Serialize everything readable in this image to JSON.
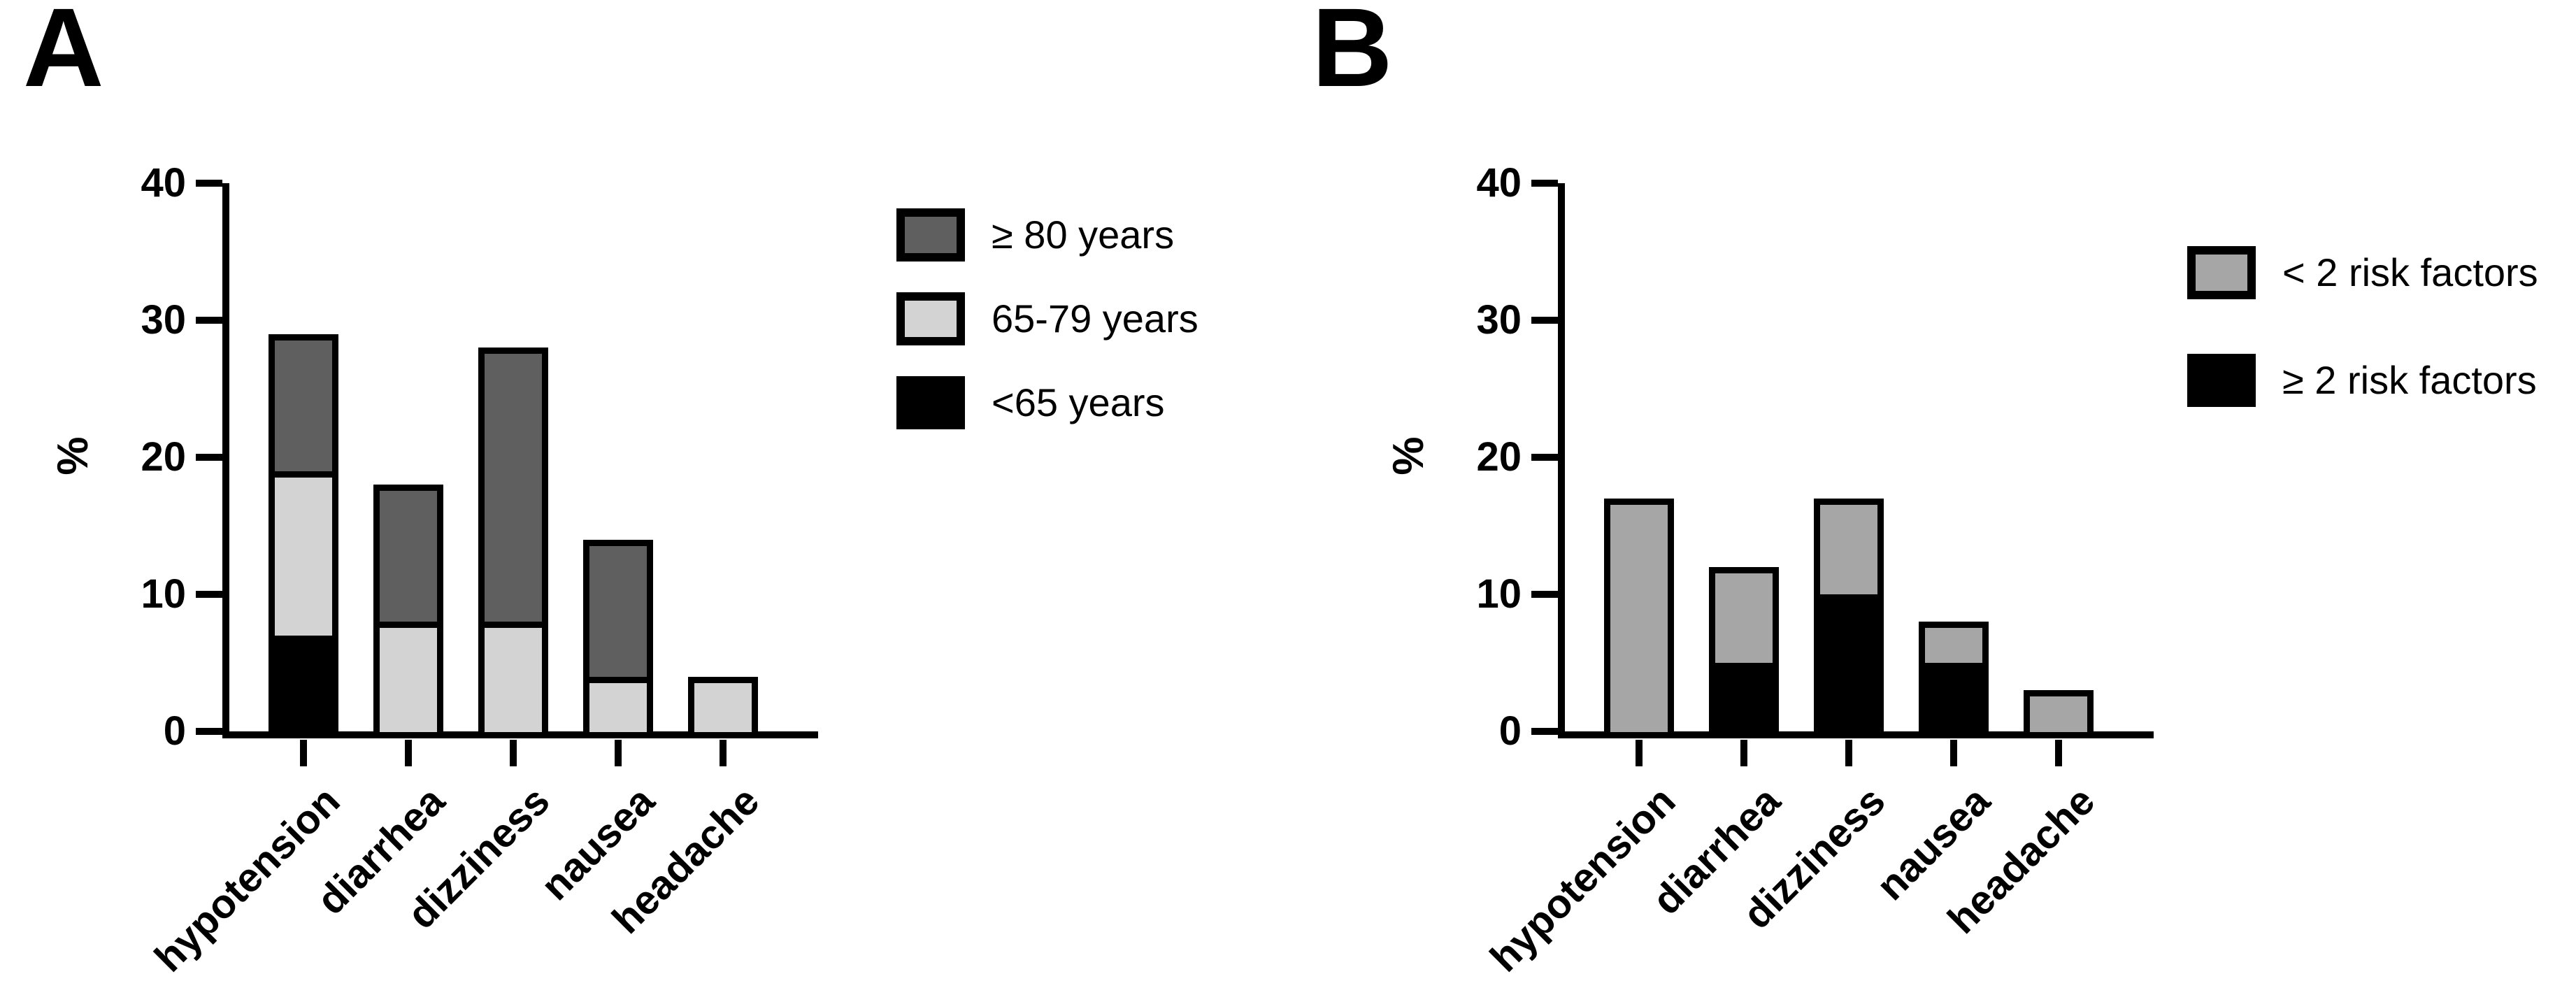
{
  "figure": {
    "background": "#ffffff",
    "axis_color": "#000000",
    "panels_count": 2
  },
  "chart_data": [
    {
      "type": "bar",
      "stacked": true,
      "stack_order": "bottom-to-top",
      "panel_letter": "A",
      "title": "",
      "xlabel": "",
      "ylabel": "%",
      "ylim": [
        0,
        40
      ],
      "yticks": [
        0,
        10,
        20,
        30,
        40
      ],
      "grid": false,
      "legend_position": "right",
      "categories": [
        "hypotension",
        "diarrhea",
        "dizziness",
        "nausea",
        "headache"
      ],
      "series": [
        {
          "name": "<65 years",
          "color": "#000000",
          "values": [
            7,
            0,
            0,
            0,
            0
          ]
        },
        {
          "name": "65-79 years",
          "color": "#d3d3d3",
          "values": [
            12,
            8,
            8,
            4,
            4
          ]
        },
        {
          "name": "≥ 80 years",
          "color": "#5f5f5f",
          "values": [
            10,
            10,
            20,
            10,
            0
          ]
        }
      ],
      "totals": [
        29,
        18,
        28,
        14,
        4
      ]
    },
    {
      "type": "bar",
      "stacked": true,
      "stack_order": "bottom-to-top",
      "panel_letter": "B",
      "title": "",
      "xlabel": "",
      "ylabel": "%",
      "ylim": [
        0,
        40
      ],
      "yticks": [
        0,
        10,
        20,
        30,
        40
      ],
      "grid": false,
      "legend_position": "right",
      "categories": [
        "hypotension",
        "diarrhea",
        "dizziness",
        "nausea",
        "headache"
      ],
      "series": [
        {
          "name": "≥ 2 risk factors",
          "color": "#000000",
          "values": [
            0,
            5,
            10,
            5,
            0
          ]
        },
        {
          "name": "< 2 risk factors",
          "color": "#a6a6a6",
          "values": [
            17,
            7,
            7,
            3,
            3
          ]
        }
      ],
      "totals": [
        17,
        12,
        17,
        8,
        3
      ]
    }
  ]
}
